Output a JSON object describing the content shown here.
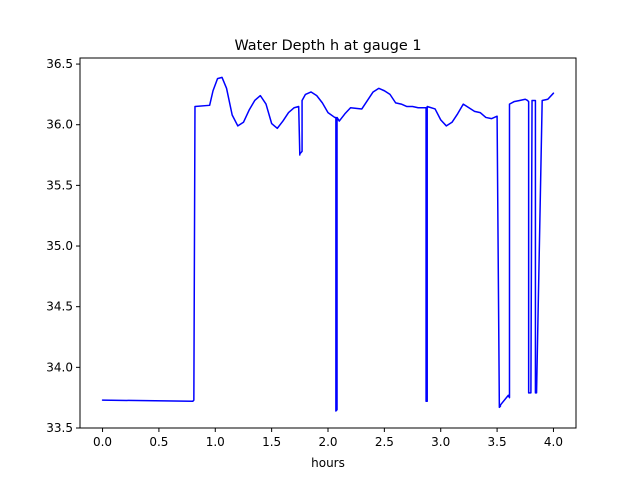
{
  "chart_data": {
    "type": "line",
    "title": "Water Depth h at gauge 1",
    "xlabel": "hours",
    "ylabel": "",
    "xlim": [
      -0.2,
      4.2
    ],
    "ylim": [
      33.5,
      36.55
    ],
    "x_ticks": [
      0.0,
      0.5,
      1.0,
      1.5,
      2.0,
      2.5,
      3.0,
      3.5,
      4.0
    ],
    "x_tick_labels": [
      "0.0",
      "0.5",
      "1.0",
      "1.5",
      "2.0",
      "2.5",
      "3.0",
      "3.5",
      "4.0"
    ],
    "y_ticks": [
      33.5,
      34.0,
      34.5,
      35.0,
      35.5,
      36.0,
      36.5
    ],
    "y_tick_labels": [
      "33.5",
      "34.0",
      "34.5",
      "35.0",
      "35.5",
      "36.0",
      "36.5"
    ],
    "grid": false,
    "legend": "none",
    "series": [
      {
        "color": "#0000ff",
        "x": [
          0.0,
          0.8,
          0.81,
          0.82,
          0.95,
          0.98,
          1.02,
          1.06,
          1.1,
          1.15,
          1.2,
          1.25,
          1.3,
          1.35,
          1.4,
          1.45,
          1.5,
          1.55,
          1.6,
          1.65,
          1.7,
          1.74,
          1.75,
          1.75,
          1.77,
          1.77,
          1.8,
          1.85,
          1.9,
          1.95,
          2.0,
          2.06,
          2.07,
          2.07,
          2.08,
          2.08,
          2.1,
          2.15,
          2.2,
          2.3,
          2.35,
          2.4,
          2.45,
          2.5,
          2.55,
          2.6,
          2.65,
          2.7,
          2.75,
          2.8,
          2.87,
          2.87,
          2.88,
          2.88,
          2.95,
          3.0,
          3.05,
          3.1,
          3.15,
          3.2,
          3.25,
          3.3,
          3.35,
          3.4,
          3.45,
          3.5,
          3.52,
          3.53,
          3.53,
          3.6,
          3.61,
          3.61,
          3.65,
          3.7,
          3.75,
          3.77,
          3.78,
          3.78,
          3.8,
          3.81,
          3.81,
          3.83,
          3.84,
          3.84,
          3.85,
          3.9,
          3.95,
          4.0
        ],
        "y": [
          33.73,
          33.72,
          33.73,
          36.15,
          36.16,
          36.28,
          36.38,
          36.39,
          36.3,
          36.08,
          35.99,
          36.02,
          36.12,
          36.2,
          36.24,
          36.17,
          36.01,
          35.97,
          36.03,
          36.1,
          36.14,
          36.15,
          35.75,
          35.76,
          35.78,
          36.2,
          36.25,
          36.27,
          36.24,
          36.18,
          36.1,
          36.06,
          36.06,
          33.64,
          33.65,
          36.06,
          36.03,
          36.09,
          36.14,
          36.13,
          36.2,
          36.27,
          36.3,
          36.28,
          36.25,
          36.18,
          36.17,
          36.15,
          36.15,
          36.14,
          36.14,
          33.72,
          33.72,
          36.15,
          36.13,
          36.04,
          35.99,
          36.02,
          36.09,
          36.17,
          36.14,
          36.11,
          36.1,
          36.06,
          36.05,
          36.07,
          33.67,
          33.68,
          33.69,
          33.77,
          33.75,
          36.17,
          36.19,
          36.2,
          36.21,
          36.2,
          36.19,
          33.79,
          33.79,
          36.2,
          36.2,
          36.2,
          36.2,
          33.79,
          33.79,
          36.2,
          36.21,
          36.26
        ]
      }
    ]
  }
}
